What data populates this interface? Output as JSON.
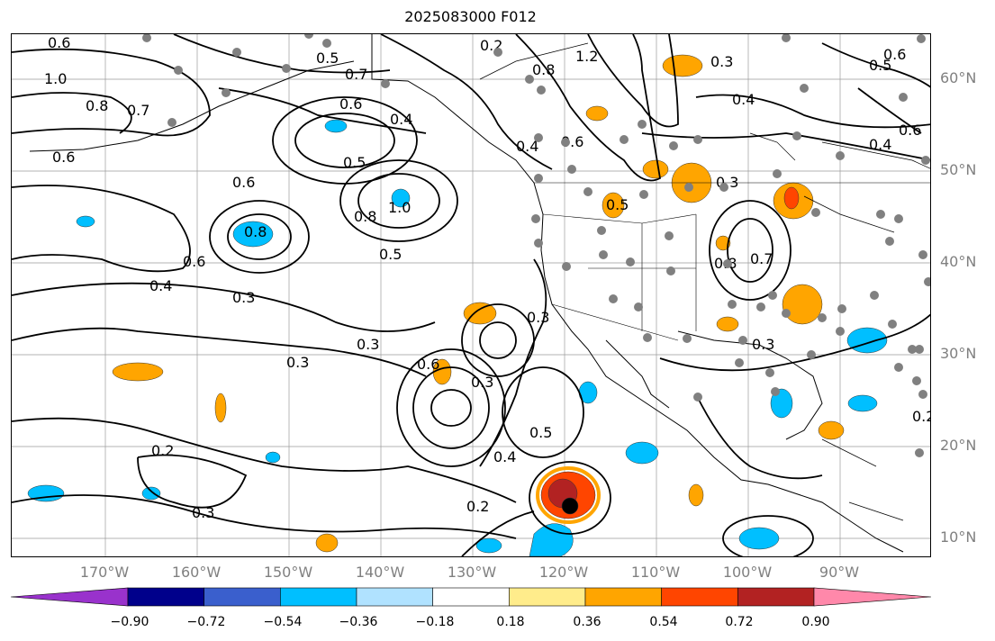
{
  "title": "2025083000 F012",
  "lat_labels": [
    "60°N",
    "50°N",
    "40°N",
    "30°N",
    "20°N",
    "10°N"
  ],
  "lon_labels": [
    "170°W",
    "160°W",
    "150°W",
    "140°W",
    "130°W",
    "120°W",
    "110°W",
    "100°W",
    "90°W"
  ],
  "colorbar": {
    "colors": [
      "#9932cc",
      "#00008b",
      "#3a5fcd",
      "#00bfff",
      "#b0e2ff",
      "#ffffff",
      "#ffec8b",
      "#ffa500",
      "#ff4500",
      "#b22222",
      "#ff88aa"
    ],
    "tick_labels": [
      "−0.90",
      "−0.72",
      "−0.54",
      "−0.36",
      "−0.18",
      "0.18",
      "0.36",
      "0.54",
      "0.72",
      "0.90"
    ]
  },
  "contour_labels": [
    "0.6",
    "0.5",
    "0.7",
    "1.0",
    "0.8",
    "0.7",
    "0.6",
    "0.6",
    "0.4",
    "0.5",
    "0.8",
    "1.0",
    "0.6",
    "0.8",
    "0.6",
    "0.4",
    "0.3",
    "0.3",
    "0.3",
    "0.2",
    "0.3",
    "0.5",
    "0.6",
    "0.3",
    "0.5",
    "0.4",
    "0.2",
    "0.3",
    "0.2",
    "1.2",
    "0.8",
    "0.3",
    "0.4",
    "0.5",
    "0.6",
    "0.4",
    "0.6",
    "0.8",
    "0.7",
    "0.3",
    "0.3",
    "0.5",
    "0.4",
    "0.6",
    "0.2"
  ]
}
